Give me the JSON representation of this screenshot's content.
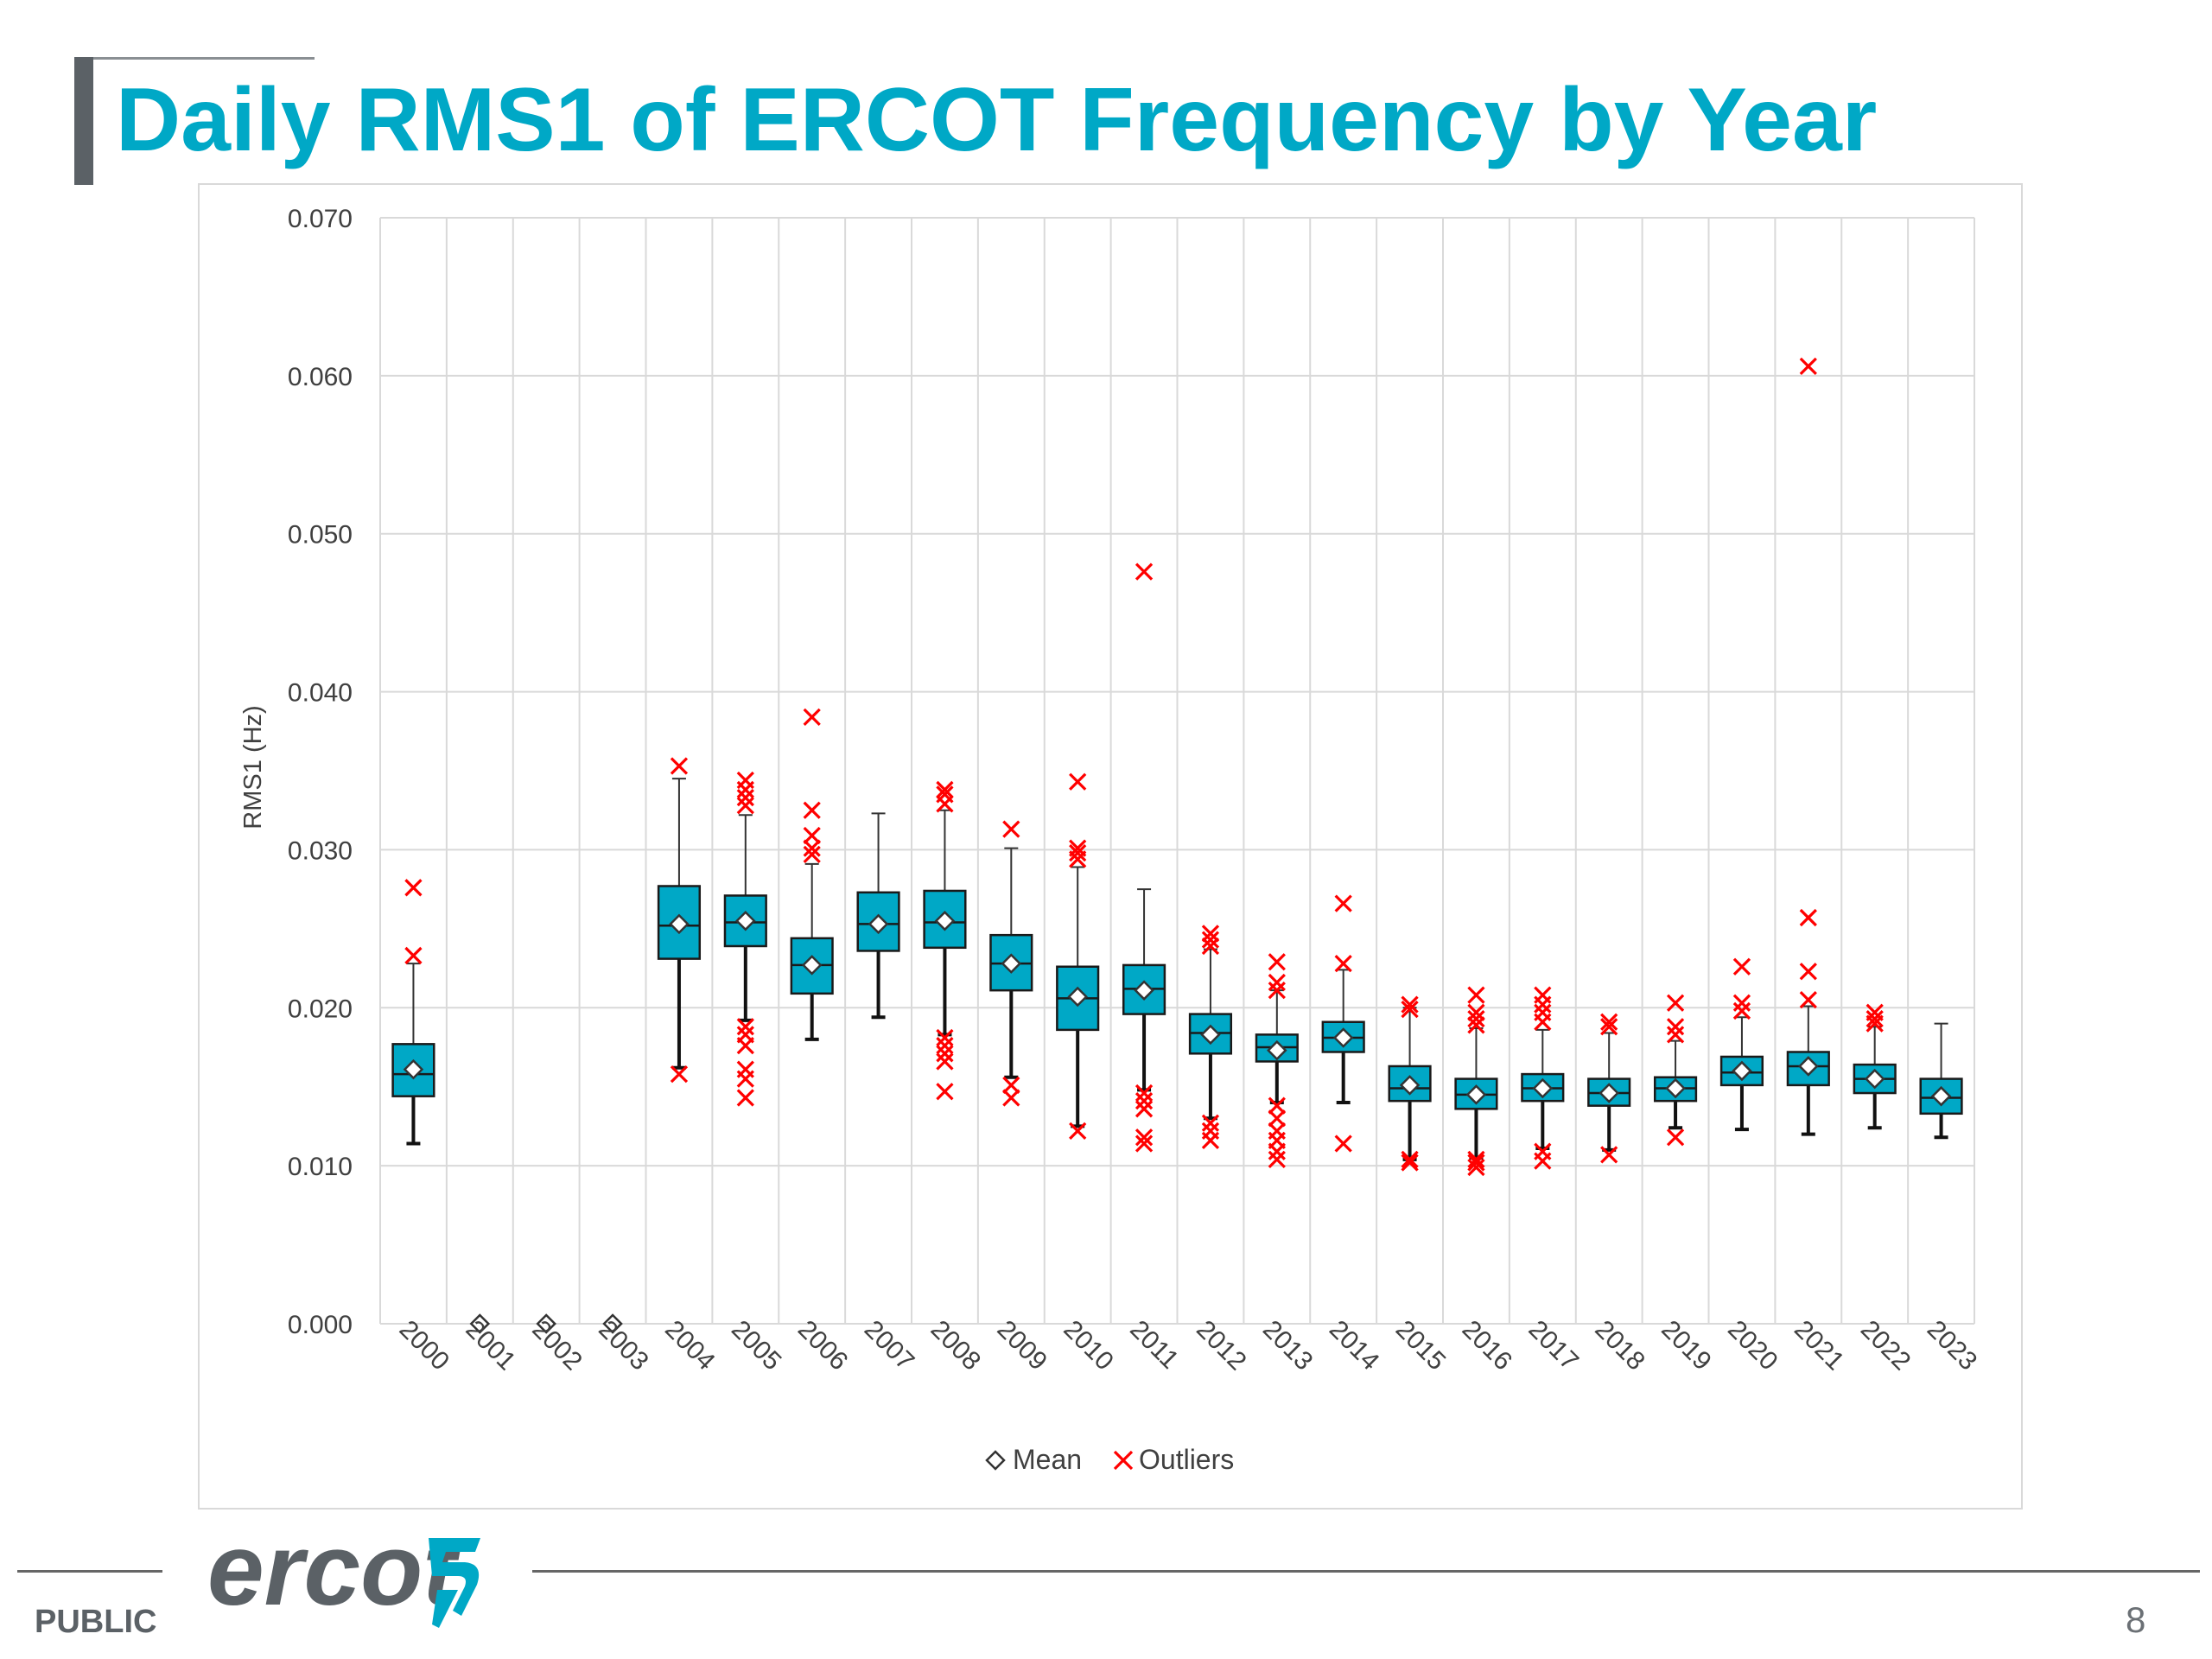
{
  "slide": {
    "title": "Daily RMS1 of ERCOT Frequency by Year",
    "footer_label": "PUBLIC",
    "page_number": "8",
    "logo_text": "ercot"
  },
  "colors": {
    "title": "#00a8c6",
    "box_fill": "#00a8c6",
    "outlier": "#ff0000",
    "grid": "#d9d9d9"
  },
  "chart_data": {
    "type": "box",
    "title": "",
    "xlabel": "",
    "ylabel": "RMS1 (Hz)",
    "ylim": [
      0,
      0.07
    ],
    "yticks": [
      "0.000",
      "0.010",
      "0.020",
      "0.030",
      "0.040",
      "0.050",
      "0.060",
      "0.070"
    ],
    "ytick_values": [
      0,
      0.01,
      0.02,
      0.03,
      0.04,
      0.05,
      0.06,
      0.07
    ],
    "grid": true,
    "legend": {
      "position": "bottom",
      "items": [
        {
          "symbol": "◇",
          "label": "Mean"
        },
        {
          "symbol": "✕",
          "label": "Outliers"
        }
      ]
    },
    "years": [
      {
        "year": "2000",
        "min": 0.0114,
        "q1": 0.0144,
        "median": 0.0158,
        "q3": 0.0177,
        "max": 0.0228,
        "mean": 0.0161,
        "outliers": [
          0.0233,
          0.0276
        ]
      },
      {
        "year": "2001",
        "mean": 0.0
      },
      {
        "year": "2002",
        "mean": 0.0
      },
      {
        "year": "2003",
        "mean": 0.0
      },
      {
        "year": "2004",
        "min": 0.0162,
        "q1": 0.0231,
        "median": 0.0252,
        "q3": 0.0277,
        "max": 0.0345,
        "mean": 0.0253,
        "outliers": [
          0.0158,
          0.0353
        ]
      },
      {
        "year": "2005",
        "min": 0.0192,
        "q1": 0.0239,
        "median": 0.0254,
        "q3": 0.0271,
        "max": 0.0322,
        "mean": 0.0255,
        "outliers": [
          0.0143,
          0.0155,
          0.0161,
          0.0176,
          0.0183,
          0.0188,
          0.0328,
          0.0333,
          0.0338,
          0.0344
        ]
      },
      {
        "year": "2006",
        "min": 0.018,
        "q1": 0.0209,
        "median": 0.0227,
        "q3": 0.0244,
        "max": 0.0291,
        "mean": 0.0227,
        "outliers": [
          0.0297,
          0.0301,
          0.0309,
          0.0325,
          0.0384
        ]
      },
      {
        "year": "2007",
        "min": 0.0194,
        "q1": 0.0236,
        "median": 0.0253,
        "q3": 0.0273,
        "max": 0.0323,
        "mean": 0.0253,
        "outliers": []
      },
      {
        "year": "2008",
        "min": 0.0183,
        "q1": 0.0238,
        "median": 0.0254,
        "q3": 0.0274,
        "max": 0.0325,
        "mean": 0.0255,
        "outliers": [
          0.0147,
          0.0166,
          0.0171,
          0.0176,
          0.0181,
          0.0329,
          0.0335,
          0.0338
        ]
      },
      {
        "year": "2009",
        "min": 0.0156,
        "q1": 0.0211,
        "median": 0.0228,
        "q3": 0.0246,
        "max": 0.0301,
        "mean": 0.0228,
        "outliers": [
          0.0143,
          0.0151,
          0.0313
        ]
      },
      {
        "year": "2010",
        "min": 0.0125,
        "q1": 0.0186,
        "median": 0.0206,
        "q3": 0.0226,
        "max": 0.0289,
        "mean": 0.0207,
        "outliers": [
          0.0122,
          0.0294,
          0.0298,
          0.0301,
          0.0343
        ]
      },
      {
        "year": "2011",
        "min": 0.0148,
        "q1": 0.0196,
        "median": 0.0212,
        "q3": 0.0227,
        "max": 0.0275,
        "mean": 0.0211,
        "outliers": [
          0.0114,
          0.0118,
          0.0136,
          0.0141,
          0.0146,
          0.0476
        ]
      },
      {
        "year": "2012",
        "min": 0.013,
        "q1": 0.0171,
        "median": 0.0184,
        "q3": 0.0196,
        "max": 0.0237,
        "mean": 0.0183,
        "outliers": [
          0.0116,
          0.0122,
          0.0127,
          0.0239,
          0.0243,
          0.0247
        ]
      },
      {
        "year": "2013",
        "min": 0.014,
        "q1": 0.0166,
        "median": 0.0175,
        "q3": 0.0183,
        "max": 0.0211,
        "mean": 0.0173,
        "outliers": [
          0.0104,
          0.0109,
          0.0116,
          0.0122,
          0.013,
          0.0138,
          0.0211,
          0.0216,
          0.0229
        ]
      },
      {
        "year": "2014",
        "min": 0.014,
        "q1": 0.0172,
        "median": 0.0181,
        "q3": 0.0191,
        "max": 0.0224,
        "mean": 0.0181,
        "outliers": [
          0.0114,
          0.0228,
          0.0266
        ]
      },
      {
        "year": "2015",
        "min": 0.0104,
        "q1": 0.0141,
        "median": 0.0149,
        "q3": 0.0163,
        "max": 0.02,
        "mean": 0.0151,
        "outliers": [
          0.0102,
          0.0104,
          0.0199,
          0.0202
        ]
      },
      {
        "year": "2016",
        "min": 0.0105,
        "q1": 0.0136,
        "median": 0.0145,
        "q3": 0.0155,
        "max": 0.0187,
        "mean": 0.0145,
        "outliers": [
          0.0099,
          0.0102,
          0.0104,
          0.0189,
          0.0193,
          0.0197,
          0.0208
        ]
      },
      {
        "year": "2017",
        "min": 0.0111,
        "q1": 0.0141,
        "median": 0.0149,
        "q3": 0.0158,
        "max": 0.0186,
        "mean": 0.0149,
        "outliers": [
          0.0103,
          0.0109,
          0.0191,
          0.0197,
          0.0202,
          0.0208
        ]
      },
      {
        "year": "2018",
        "min": 0.011,
        "q1": 0.0138,
        "median": 0.0146,
        "q3": 0.0155,
        "max": 0.0184,
        "mean": 0.0146,
        "outliers": [
          0.0107,
          0.0188,
          0.0191
        ]
      },
      {
        "year": "2019",
        "min": 0.0124,
        "q1": 0.0141,
        "median": 0.0149,
        "q3": 0.0156,
        "max": 0.0179,
        "mean": 0.0149,
        "outliers": [
          0.0118,
          0.0183,
          0.0188,
          0.0203
        ]
      },
      {
        "year": "2020",
        "min": 0.0123,
        "q1": 0.0151,
        "median": 0.0159,
        "q3": 0.0169,
        "max": 0.0194,
        "mean": 0.016,
        "outliers": [
          0.0198,
          0.0203,
          0.0226
        ]
      },
      {
        "year": "2021",
        "min": 0.012,
        "q1": 0.0151,
        "median": 0.0163,
        "q3": 0.0172,
        "max": 0.0201,
        "mean": 0.0163,
        "outliers": [
          0.0205,
          0.0223,
          0.0257,
          0.0606
        ]
      },
      {
        "year": "2022",
        "min": 0.0124,
        "q1": 0.0146,
        "median": 0.0155,
        "q3": 0.0164,
        "max": 0.0188,
        "mean": 0.0155,
        "outliers": [
          0.019,
          0.0193,
          0.0197
        ]
      },
      {
        "year": "2023",
        "min": 0.0118,
        "q1": 0.0133,
        "median": 0.0143,
        "q3": 0.0155,
        "max": 0.019,
        "mean": 0.0144,
        "outliers": []
      }
    ]
  }
}
